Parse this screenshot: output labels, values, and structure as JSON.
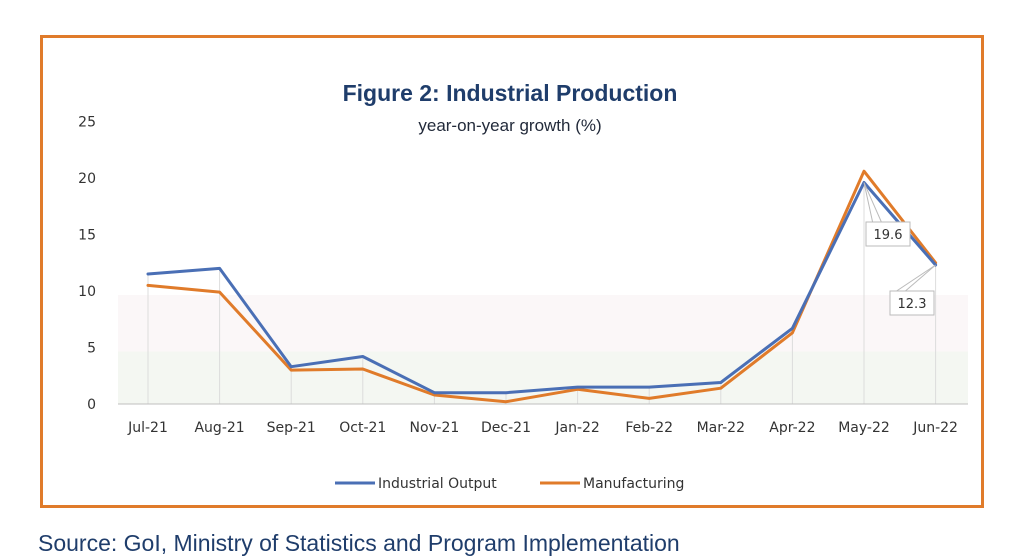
{
  "chart_data": {
    "type": "line",
    "title": "Figure 2: Industrial Production",
    "subtitle": "year-on-year growth (%)",
    "categories": [
      "Jul-21",
      "Aug-21",
      "Sep-21",
      "Oct-21",
      "Nov-21",
      "Dec-21",
      "Jan-22",
      "Feb-22",
      "Mar-22",
      "Apr-22",
      "May-22",
      "Jun-22"
    ],
    "series": [
      {
        "name": "Industrial Output",
        "color": "#4a6fb5",
        "values": [
          11.5,
          12.0,
          3.3,
          4.2,
          1.0,
          1.0,
          1.5,
          1.5,
          1.9,
          6.7,
          19.6,
          12.3
        ]
      },
      {
        "name": "Manufacturing",
        "color": "#e07b2a",
        "values": [
          10.5,
          9.9,
          3.0,
          3.1,
          0.8,
          0.2,
          1.3,
          0.5,
          1.4,
          6.3,
          20.6,
          12.5
        ]
      }
    ],
    "y_ticks": [
      "0",
      "5",
      "10",
      "15",
      "20",
      "25"
    ],
    "ylim": [
      0,
      25
    ],
    "grid": false,
    "legend_position": "bottom",
    "annotations": [
      {
        "text": "19.6",
        "category": "May-22",
        "series": "Industrial Output"
      },
      {
        "text": "12.3",
        "category": "Jun-22",
        "series": "Industrial Output"
      }
    ]
  },
  "source_note": "Source: GoI, Ministry of Statistics and Program Implementation",
  "colors": {
    "frame": "#e07b2a",
    "title": "#1f3d6b",
    "source": "#1f3d6b"
  }
}
